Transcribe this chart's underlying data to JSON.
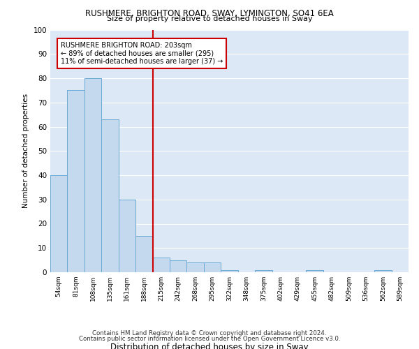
{
  "title1": "RUSHMERE, BRIGHTON ROAD, SWAY, LYMINGTON, SO41 6EA",
  "title2": "Size of property relative to detached houses in Sway",
  "xlabel": "Distribution of detached houses by size in Sway",
  "ylabel": "Number of detached properties",
  "categories": [
    "54sqm",
    "81sqm",
    "108sqm",
    "135sqm",
    "161sqm",
    "188sqm",
    "215sqm",
    "242sqm",
    "268sqm",
    "295sqm",
    "322sqm",
    "348sqm",
    "375sqm",
    "402sqm",
    "429sqm",
    "455sqm",
    "482sqm",
    "509sqm",
    "536sqm",
    "562sqm",
    "589sqm"
  ],
  "values": [
    40,
    75,
    80,
    63,
    30,
    15,
    6,
    5,
    4,
    4,
    1,
    0,
    1,
    0,
    0,
    1,
    0,
    0,
    0,
    1,
    0
  ],
  "bar_color": "#c5d9ee",
  "bar_edge_color": "#6aaad4",
  "background_color": "#dce8f5",
  "grid_color": "#ffffff",
  "vline_color": "#cc0000",
  "vline_pos": 6,
  "annotation_title": "RUSHMERE BRIGHTON ROAD: 203sqm",
  "annotation_line1": "← 89% of detached houses are smaller (295)",
  "annotation_line2": "11% of semi-detached houses are larger (37) →",
  "annotation_box_color": "#ffffff",
  "annotation_box_edge": "#cc0000",
  "footer1": "Contains HM Land Registry data © Crown copyright and database right 2024.",
  "footer2": "Contains public sector information licensed under the Open Government Licence v3.0.",
  "ylim": [
    0,
    100
  ],
  "yticks": [
    0,
    10,
    20,
    30,
    40,
    50,
    60,
    70,
    80,
    90,
    100
  ]
}
